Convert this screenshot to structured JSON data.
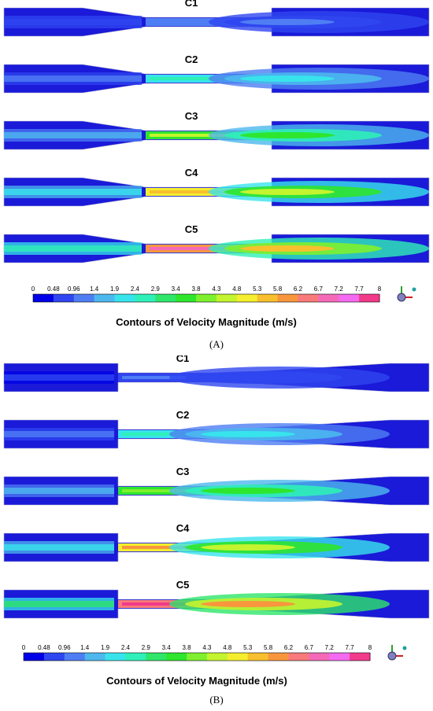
{
  "panels": [
    {
      "label": "(A)",
      "orientation": "converging-tube-diverging",
      "cases": [
        {
          "label": "C1",
          "level": 0.12
        },
        {
          "label": "C2",
          "level": 0.32
        },
        {
          "label": "C3",
          "level": 0.55
        },
        {
          "label": "C4",
          "level": 0.7
        },
        {
          "label": "C5",
          "level": 0.85
        }
      ]
    },
    {
      "label": "(B)",
      "orientation": "sudden-tube-diverging",
      "cases": [
        {
          "label": "C1",
          "level": 0.1
        },
        {
          "label": "C2",
          "level": 0.3
        },
        {
          "label": "C3",
          "level": 0.52
        },
        {
          "label": "C4",
          "level": 0.74
        },
        {
          "label": "C5",
          "level": 0.97
        }
      ]
    }
  ],
  "colorbar": {
    "title": "Contours of Velocity Magnitude (m/s)",
    "ticks": [
      "0",
      "0.48",
      "0.96",
      "1.4",
      "1.9",
      "2.4",
      "2.9",
      "3.4",
      "3.8",
      "4.3",
      "4.8",
      "5.3",
      "5.8",
      "6.2",
      "6.7",
      "7.2",
      "7.7",
      "8"
    ],
    "colors": [
      "#0000e8",
      "#2f46f0",
      "#4f7ef4",
      "#4db8ee",
      "#38e4ec",
      "#2ff0b8",
      "#2ee66a",
      "#2ee62e",
      "#7ef02e",
      "#c4f42e",
      "#f4ee2e",
      "#f8c02e",
      "#f8963e",
      "#f87a7a",
      "#f46ab8",
      "#f46af0",
      "#f23a8a",
      "#f01e2e"
    ]
  },
  "colors": {
    "fluid_base": "#1a1ad8",
    "background": "#ffffff"
  },
  "icons": [
    "axis-triad-icon"
  ]
}
